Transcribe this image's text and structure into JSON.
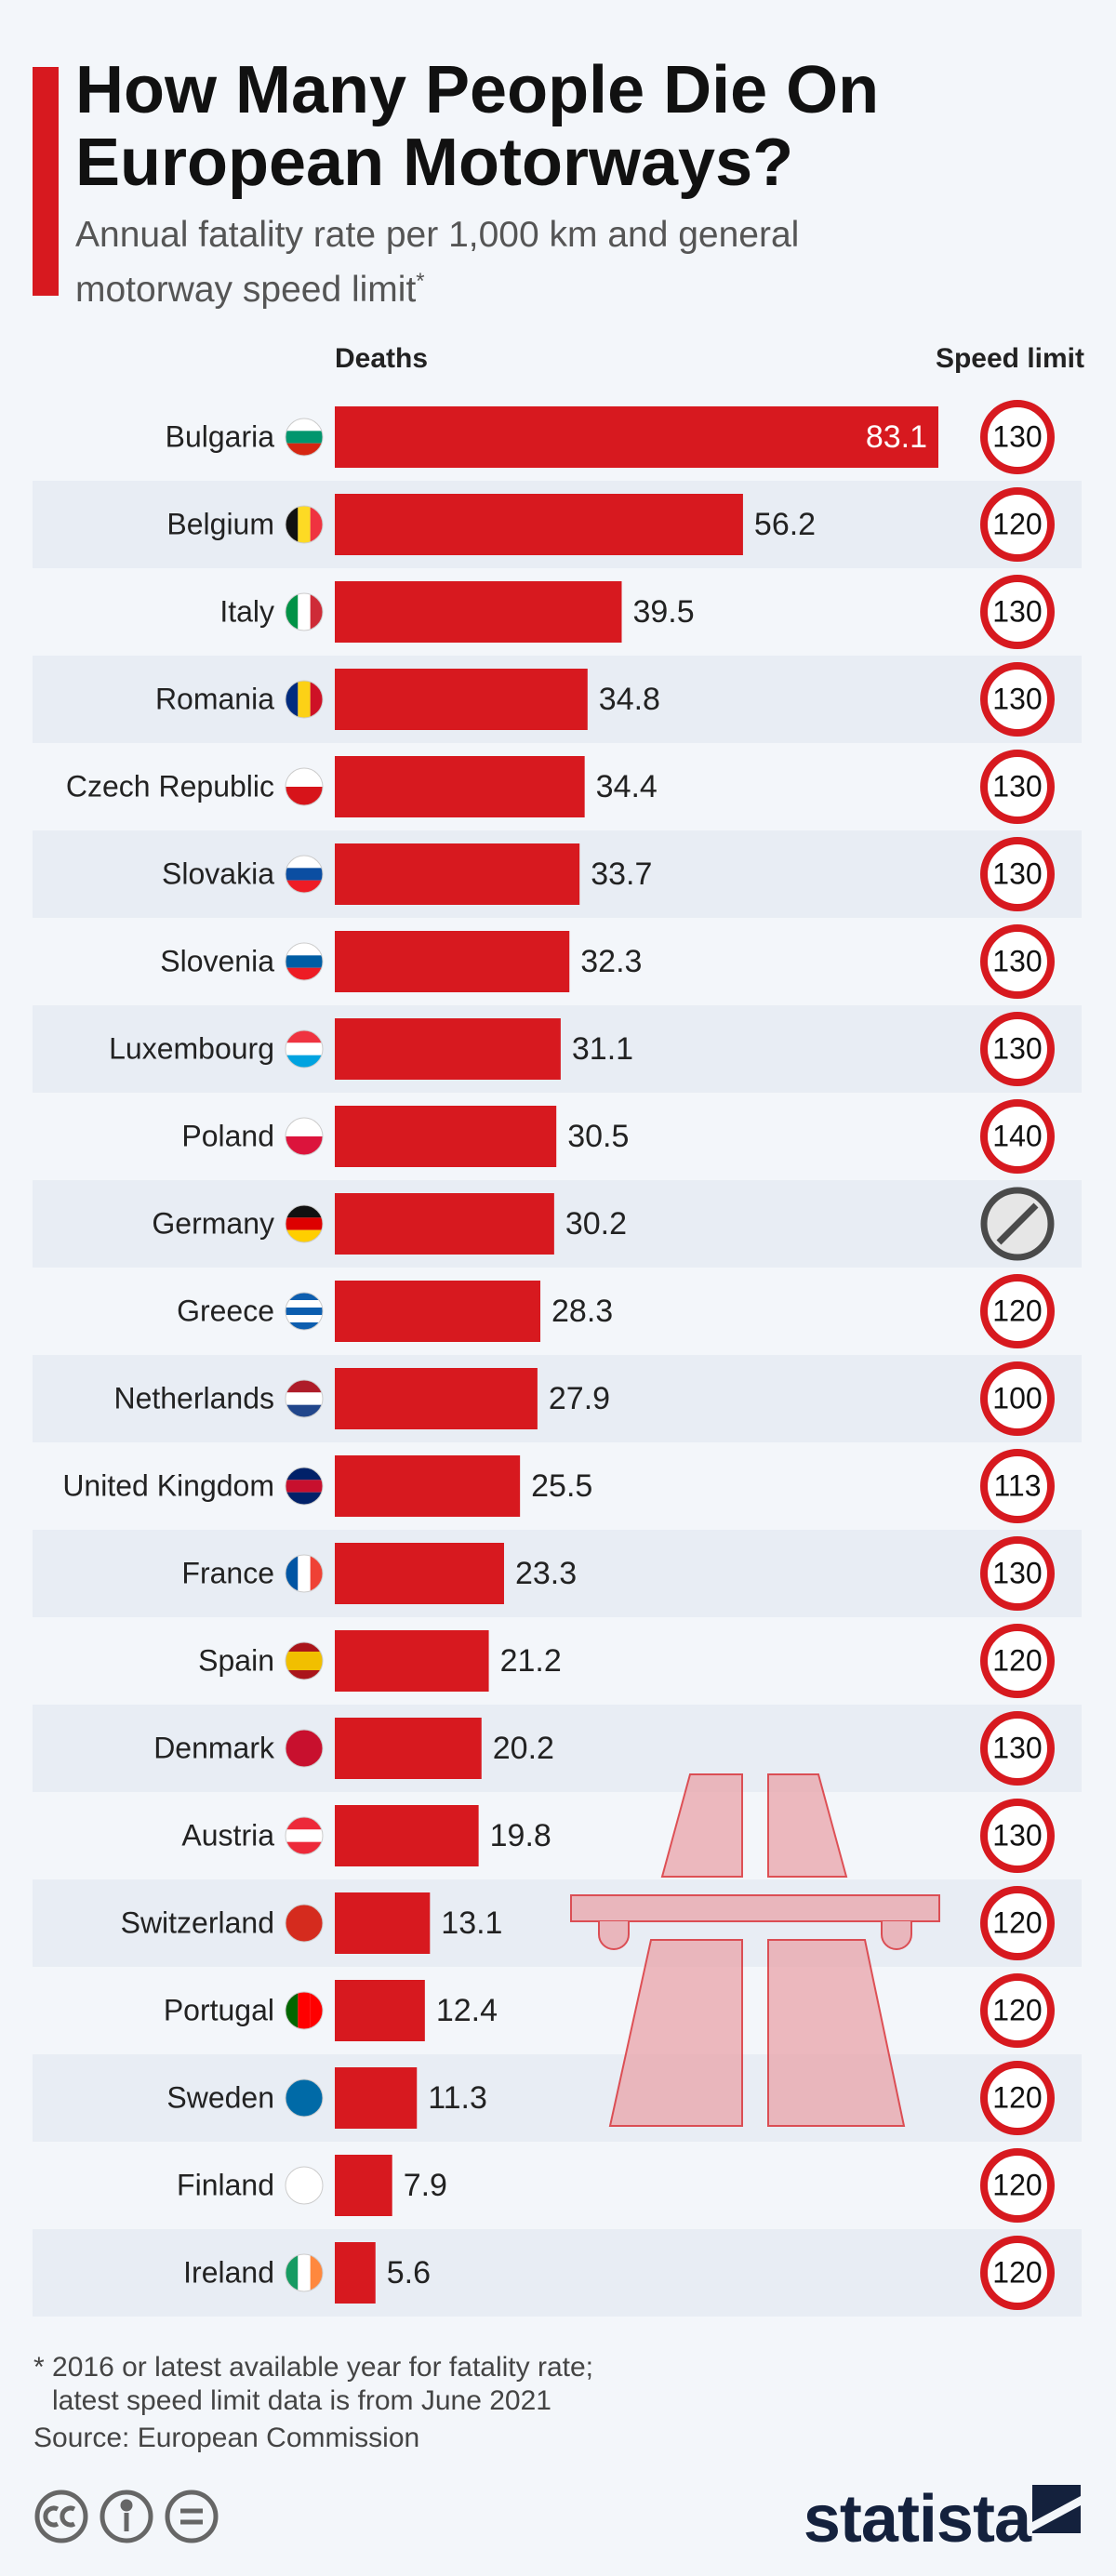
{
  "chart_data": {
    "type": "bar",
    "title": "How Many People Die On European Motorways?",
    "subtitle": "Annual fatality rate per 1,000 km and general motorway speed limit",
    "subtitle_mark": "*",
    "value_header": "Deaths",
    "speed_header": "Speed limit",
    "categories": [
      "Bulgaria",
      "Belgium",
      "Italy",
      "Romania",
      "Czech Republic",
      "Slovakia",
      "Slovenia",
      "Luxembourg",
      "Poland",
      "Germany",
      "Greece",
      "Netherlands",
      "United Kingdom",
      "France",
      "Spain",
      "Denmark",
      "Austria",
      "Switzerland",
      "Portugal",
      "Sweden",
      "Finland",
      "Ireland"
    ],
    "values": [
      83.1,
      56.2,
      39.5,
      34.8,
      34.4,
      33.7,
      32.3,
      31.1,
      30.5,
      30.2,
      28.3,
      27.9,
      25.5,
      23.3,
      21.2,
      20.2,
      19.8,
      13.1,
      12.4,
      11.3,
      7.9,
      5.6
    ],
    "speed_limits": [
      130,
      120,
      130,
      130,
      130,
      130,
      130,
      130,
      140,
      null,
      120,
      100,
      113,
      130,
      120,
      130,
      130,
      120,
      120,
      120,
      120,
      120
    ],
    "color": "#d7191f",
    "notes": [
      "* 2016 or latest available year for fatality rate;",
      "latest speed limit data is from  June 2021"
    ],
    "source": "Source: European Commission",
    "brand": "statista"
  }
}
